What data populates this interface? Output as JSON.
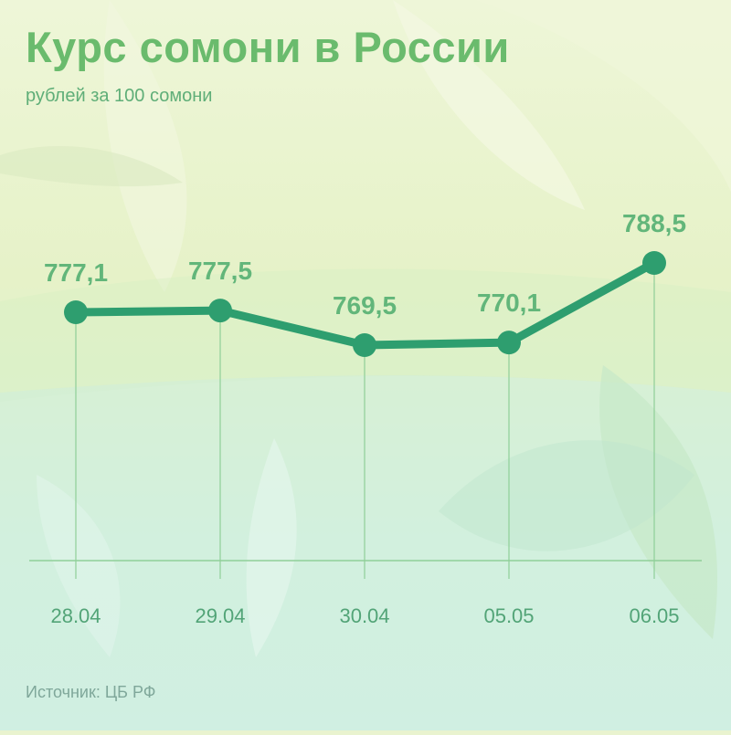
{
  "title": "Курс сомони в России",
  "subtitle": "рублей за 100 сомони",
  "source": "Источник: ЦБ РФ",
  "colors": {
    "title": "#6abb6d",
    "line": "#2e9e6f",
    "labels": "#62b67a",
    "axis": "#8fcf98"
  },
  "chart_data": {
    "type": "line",
    "title": "Курс сомони в России",
    "subtitle": "рублей за 100 сомони",
    "categories": [
      "28.04",
      "29.04",
      "30.04",
      "05.05",
      "06.05"
    ],
    "labels": [
      "777,1",
      "777,5",
      "769,5",
      "770,1",
      "788,5"
    ],
    "values": [
      777.1,
      777.5,
      769.5,
      770.1,
      788.5
    ],
    "ylim": [
      740,
      800
    ],
    "grid": false,
    "legend": "none"
  }
}
